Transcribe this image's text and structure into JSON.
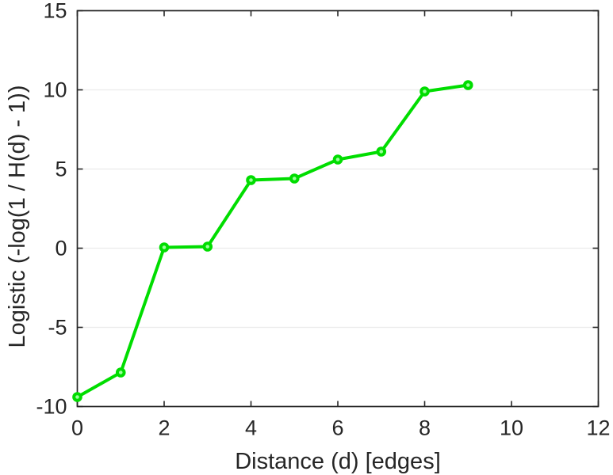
{
  "chart_data": {
    "type": "line",
    "title": "",
    "xlabel": "Distance (d) [edges]",
    "ylabel": "Logistic (-log(1 / H(d) - 1))",
    "x": [
      0,
      1,
      2,
      3,
      4,
      5,
      6,
      7,
      8,
      9
    ],
    "y": [
      -9.4,
      -7.85,
      0.05,
      0.1,
      4.3,
      4.4,
      5.6,
      6.1,
      9.9,
      10.3
    ],
    "xlim": [
      0,
      12
    ],
    "ylim": [
      -10,
      15
    ],
    "xticks": [
      0,
      2,
      4,
      6,
      8,
      10,
      12
    ],
    "yticks": [
      -10,
      -5,
      0,
      5,
      10,
      15
    ],
    "grid": "horizontal",
    "legend_position": "none",
    "line_color": "#00dd00",
    "marker": "circle",
    "marker_face_color": "#9dff9d",
    "axis_color": "#262626",
    "grid_color": "#ebebeb",
    "background_color": "#ffffff"
  }
}
